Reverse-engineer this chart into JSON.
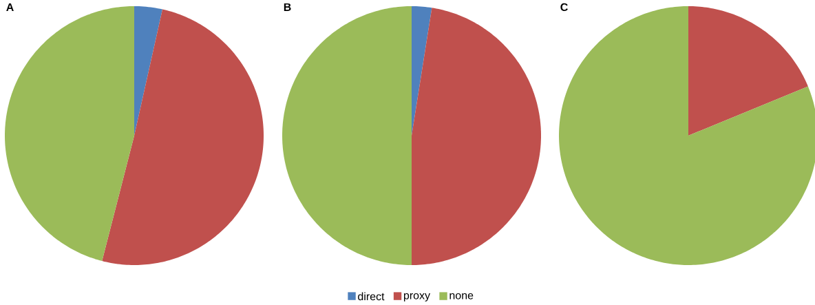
{
  "chart_data": [
    {
      "type": "pie",
      "title": "A",
      "categories": [
        null,
        null,
        null
      ],
      "values": [
        3.5,
        50.5,
        46
      ],
      "colors": [
        "#4f81bd",
        "#c0504d",
        "#9bbb59"
      ]
    },
    {
      "type": "pie",
      "title": "B",
      "categories": [
        "direct",
        "proxy",
        "none"
      ],
      "values": [
        2.5,
        47.5,
        50
      ],
      "colors": [
        "#4f81bd",
        "#c0504d",
        "#9bbb59"
      ],
      "legend": "bottom"
    },
    {
      "type": "pie",
      "title": "C",
      "categories": [
        null,
        null,
        null
      ],
      "values": [
        0,
        18.8,
        81.2
      ],
      "colors": [
        "#4f81bd",
        "#c0504d",
        "#9bbb59"
      ]
    }
  ]
}
